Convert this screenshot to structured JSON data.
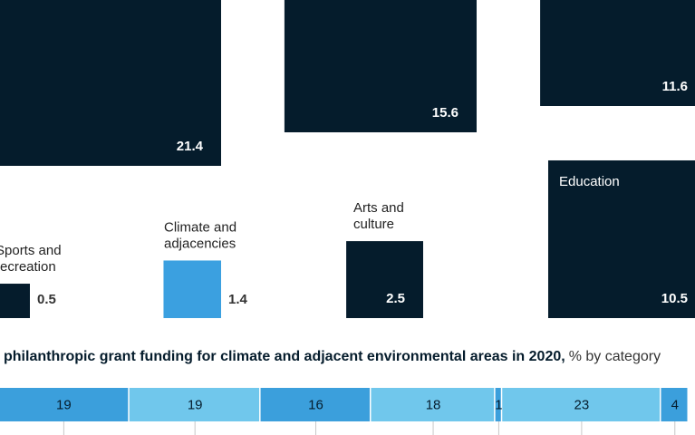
{
  "chart_data": [
    {
      "type": "square",
      "categories": [
        null,
        null,
        null,
        [
          "Sports and",
          "recreation"
        ],
        [
          "Climate and",
          "adjacencies"
        ],
        [
          "Arts and",
          "culture"
        ],
        [
          "Education"
        ]
      ],
      "values": [
        21.4,
        15.6,
        11.6,
        0.5,
        1.4,
        2.5,
        10.5
      ],
      "colors": [
        "#051c2c",
        "#051c2c",
        "#051c2c",
        "#051c2c",
        "#3ba0e0",
        "#051c2c",
        "#051c2c"
      ]
    },
    {
      "type": "stacked_bar",
      "title": "philanthropic grant funding for climate and adjacent environmental areas in 2020,",
      "subtitle": "% by category",
      "values": [
        19,
        19,
        16,
        18,
        1,
        23,
        4
      ],
      "colors": [
        "#3b9fdc",
        "#70c7ec",
        "#3b9fdc",
        "#70c7ec",
        "#3b9fdc",
        "#70c7ec",
        "#3b9fdc"
      ],
      "xlim": [
        0,
        100
      ]
    }
  ]
}
